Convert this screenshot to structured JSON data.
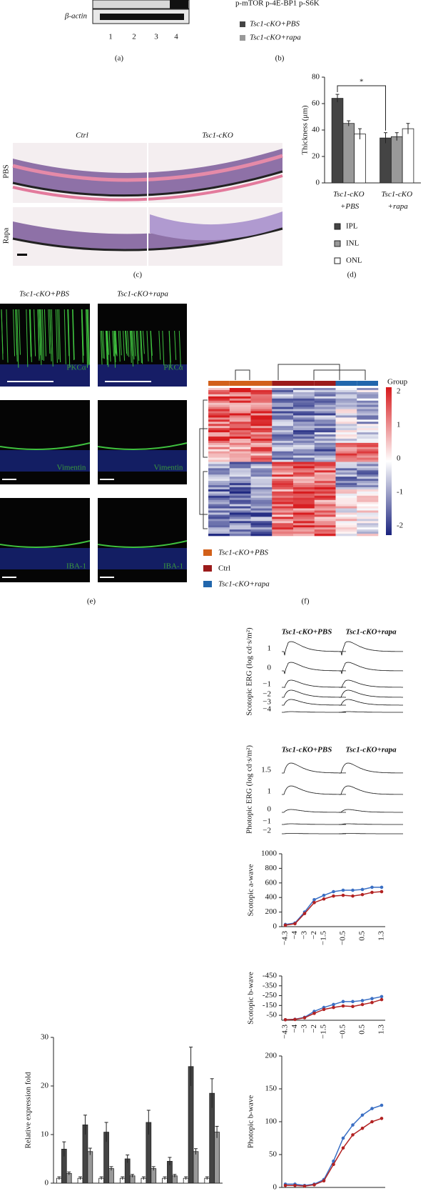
{
  "panels": {
    "a": {
      "label": "(a)",
      "row_label": "β-actin",
      "lanes": [
        "1",
        "2",
        "3",
        "4"
      ]
    },
    "b": {
      "label": "(b)",
      "columns": "p-mTOR p-4E-BP1 p-S6K",
      "legend": [
        "Tsc1-cKO+PBS",
        "Tsc1-cKO+rapa"
      ]
    },
    "c": {
      "label": "(c)",
      "columns": [
        "Ctrl",
        "Tsc1-cKO"
      ],
      "rows": [
        "PBS",
        "Rapa"
      ]
    },
    "e": {
      "label": "(e)",
      "columns": [
        "Tsc1-cKO+PBS",
        "Tsc1-cKO+rapa"
      ],
      "stains": [
        "PKCα",
        "Vimentin",
        "IBA-1"
      ]
    },
    "f": {
      "label": "(f)",
      "legend_title": "Group",
      "colorbar": [
        2,
        1,
        0,
        -1,
        -2
      ],
      "legend": [
        "Tsc1-cKO+PBS",
        "Ctrl",
        "Tsc1-cKO+rapa"
      ]
    },
    "erg": {
      "header": [
        "Tsc1-cKO+PBS",
        "Tsc1-cKO+rapa"
      ],
      "scotopic": {
        "ylabel": "Scotopic ERG (log cd·s/m²)",
        "levels": [
          "1",
          "0",
          "−1",
          "−2",
          "−3",
          "−4"
        ]
      },
      "photopic": {
        "ylabel": "Photopic ERG (log cd·s/m²)",
        "levels": [
          "1.5",
          "1",
          "0",
          "−1",
          "−2"
        ]
      }
    }
  },
  "chart_data": [
    {
      "type": "bar",
      "label": "(d)",
      "ylabel": "Thickness (μm)",
      "annotation": "*",
      "categories": [
        "Tsc1-cKO +PBS",
        "Tsc1-cKO +rapa"
      ],
      "series": [
        {
          "name": "IPL",
          "color": "#444444",
          "values": [
            64,
            34
          ],
          "errors": [
            3,
            4
          ]
        },
        {
          "name": "INL",
          "color": "#999999",
          "values": [
            45,
            35
          ],
          "errors": [
            2,
            3
          ]
        },
        {
          "name": "ONL",
          "color": "#ffffff",
          "values": [
            37,
            41
          ],
          "errors": [
            4,
            4
          ]
        }
      ],
      "ylim": [
        0,
        80
      ],
      "yticks": [
        0,
        20,
        40,
        60,
        80
      ]
    },
    {
      "type": "line",
      "ylabel": "Scotopic a-wave",
      "categories": [
        "−4.3",
        "−4",
        "−3",
        "−2",
        "−1.5",
        null,
        "−0.5",
        null,
        "0.5",
        null,
        "1.3"
      ],
      "series": [
        {
          "color": "#3a6fc4",
          "values": [
            30,
            50,
            200,
            370,
            430,
            480,
            500,
            500,
            510,
            540,
            540
          ]
        },
        {
          "color": "#b22222",
          "values": [
            20,
            40,
            180,
            330,
            380,
            420,
            430,
            420,
            440,
            470,
            480
          ]
        }
      ],
      "ylim": [
        0,
        1000
      ],
      "yticks": [
        0,
        200,
        400,
        600,
        800,
        1000
      ]
    },
    {
      "type": "line",
      "ylabel": "Scotopic b-wave",
      "categories": [
        "−4.3",
        "−4",
        "−3",
        "−2",
        "−1.5",
        null,
        "−0.5",
        null,
        "0.5",
        null,
        "1.3"
      ],
      "series": [
        {
          "color": "#3a6fc4",
          "values": [
            -5,
            -10,
            -30,
            -90,
            -130,
            -160,
            -190,
            -190,
            -200,
            -220,
            -240
          ]
        },
        {
          "color": "#b22222",
          "values": [
            -5,
            -8,
            -25,
            -70,
            -110,
            -130,
            -145,
            -140,
            -160,
            -180,
            -210
          ]
        }
      ],
      "ylim": [
        0,
        -450
      ],
      "yticks": [
        -50,
        -150,
        -250,
        -350,
        -450
      ]
    },
    {
      "type": "line",
      "ylabel": "Photopic b-wave",
      "categories": [
        null,
        null,
        null,
        null,
        null,
        null,
        null,
        null,
        null,
        null,
        null
      ],
      "series": [
        {
          "color": "#3a6fc4",
          "values": [
            5,
            5,
            3,
            5,
            12,
            40,
            75,
            95,
            110,
            120,
            125
          ]
        },
        {
          "color": "#b22222",
          "values": [
            3,
            3,
            2,
            4,
            10,
            35,
            60,
            80,
            90,
            100,
            105
          ]
        }
      ],
      "ylim": [
        0,
        200
      ],
      "yticks": [
        0,
        50,
        100,
        150,
        200
      ]
    },
    {
      "type": "bar",
      "ylabel": "Relative expression fold",
      "series": [
        {
          "color": "#ffffff",
          "values": [
            1,
            1,
            1,
            1,
            1,
            1,
            1,
            1
          ],
          "errors": [
            0.3,
            0.3,
            0.3,
            0.3,
            0.3,
            0.3,
            0.3,
            0.3
          ]
        },
        {
          "color": "#444444",
          "values": [
            7,
            12,
            10.5,
            5,
            12.5,
            4.5,
            24,
            18.5
          ],
          "errors": [
            1.5,
            2,
            2,
            0.8,
            2.5,
            0.8,
            4,
            3
          ]
        },
        {
          "color": "#999999",
          "values": [
            2,
            6.5,
            3,
            1.5,
            3,
            1.5,
            6.5,
            10.5
          ],
          "errors": [
            0.3,
            0.7,
            0.4,
            0.3,
            0.4,
            0.3,
            0.6,
            1.2
          ]
        }
      ],
      "ylim": [
        0,
        30
      ],
      "yticks": [
        0,
        10,
        20,
        30
      ]
    }
  ]
}
